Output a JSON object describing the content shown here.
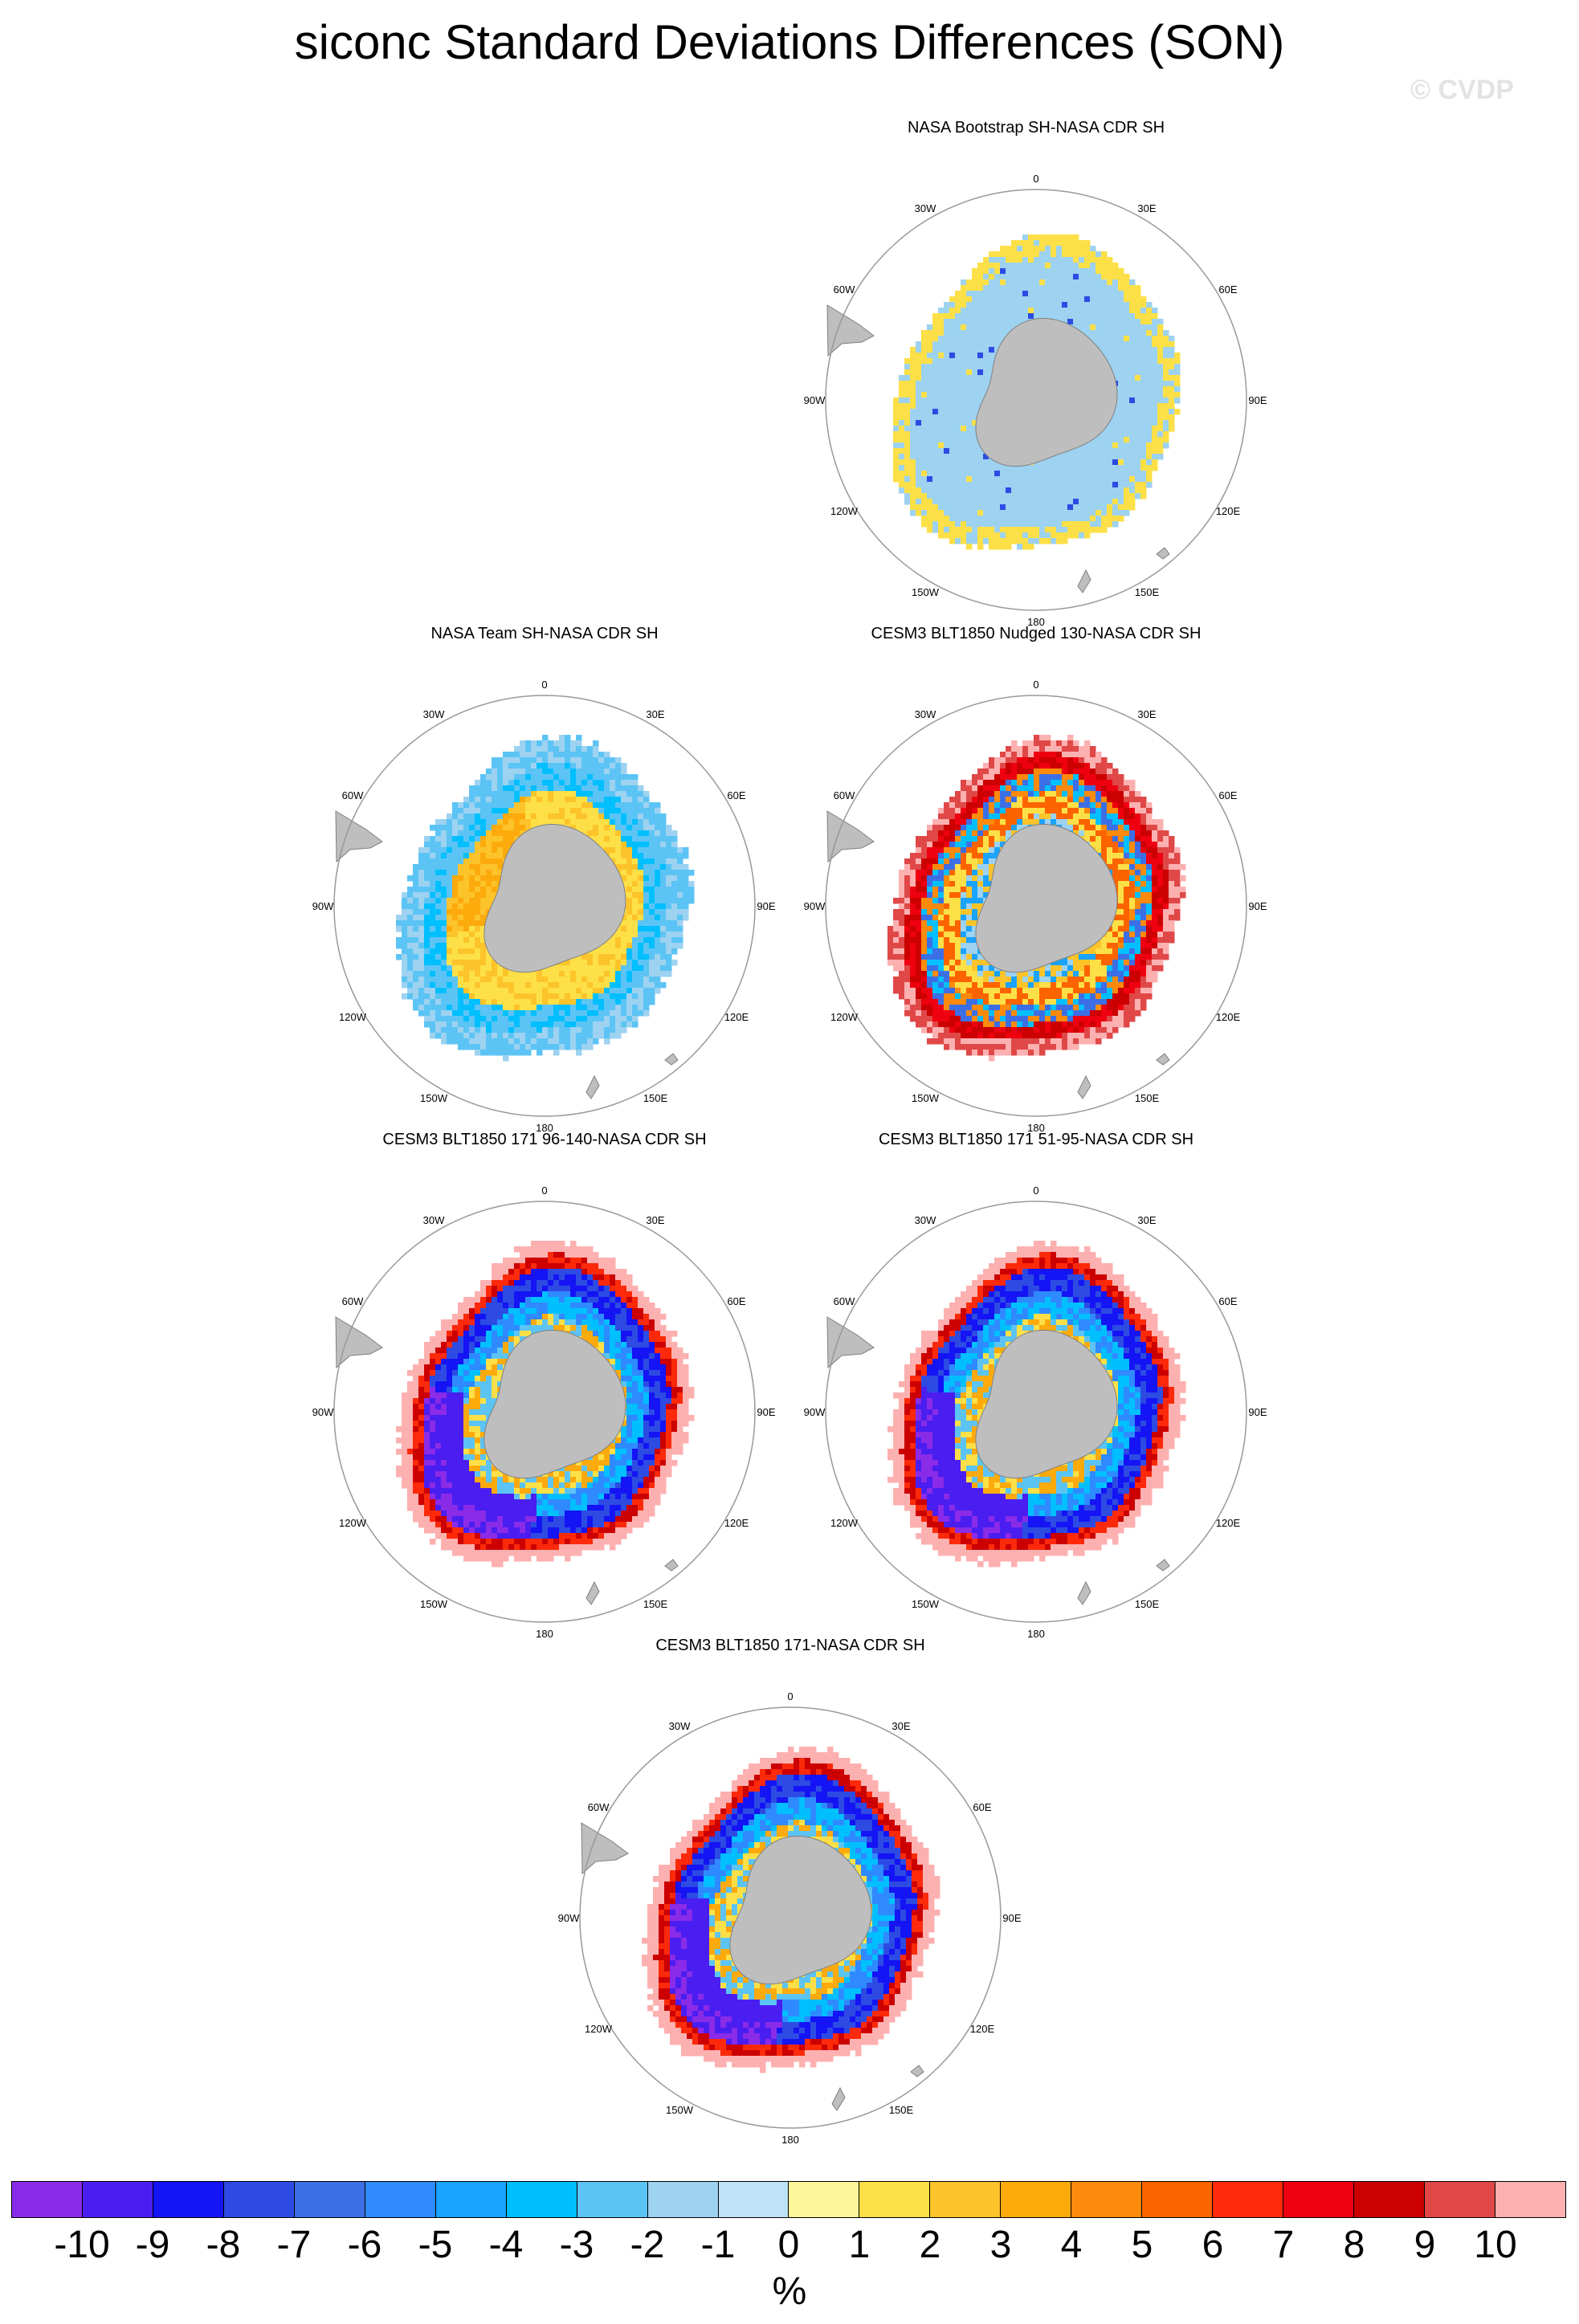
{
  "figure": {
    "title": "siconc Standard Deviations Differences (SON)",
    "watermark": "© CVDP"
  },
  "longitude_labels": [
    "0",
    "30E",
    "60E",
    "90E",
    "120E",
    "150E",
    "180",
    "150W",
    "120W",
    "90W",
    "60W",
    "30W"
  ],
  "panels": [
    {
      "title": "NASA Bootstrap SH-NASA CDR SH",
      "style": "bootstrap"
    },
    {
      "title": "NASA Team SH-NASA CDR SH",
      "style": "team"
    },
    {
      "title": "CESM3 BLT1850 Nudged 130-NASA CDR SH",
      "style": "nudged"
    },
    {
      "title": "CESM3 BLT1850 171 96-140-NASA CDR SH",
      "style": "model"
    },
    {
      "title": "CESM3 BLT1850 171 51-95-NASA CDR SH",
      "style": "model"
    },
    {
      "title": "CESM3 BLT1850 171-NASA CDR SH",
      "style": "model"
    }
  ],
  "colorbar": {
    "units": "%",
    "tick_labels": [
      "-10",
      "-9",
      "-8",
      "-7",
      "-6",
      "-5",
      "-4",
      "-3",
      "-2",
      "-1",
      "0",
      "1",
      "2",
      "3",
      "4",
      "5",
      "6",
      "7",
      "8",
      "9",
      "10"
    ],
    "colors": [
      "#8a2be8",
      "#4a1ef0",
      "#1414f5",
      "#2d4be3",
      "#3c6fe6",
      "#2f8aff",
      "#1aa3ff",
      "#00bfff",
      "#5cc4f5",
      "#9dd2f0",
      "#c0e2f7",
      "#fff59a",
      "#fde047",
      "#fcc42a",
      "#fdaa0d",
      "#fd8a0a",
      "#fd6400",
      "#fc2a0a",
      "#ee0010",
      "#cc0000",
      "#e04848",
      "#fdb0b0"
    ]
  },
  "colors": {
    "land": "#bebebe",
    "coast": "#808080",
    "circle": "#999999"
  }
}
